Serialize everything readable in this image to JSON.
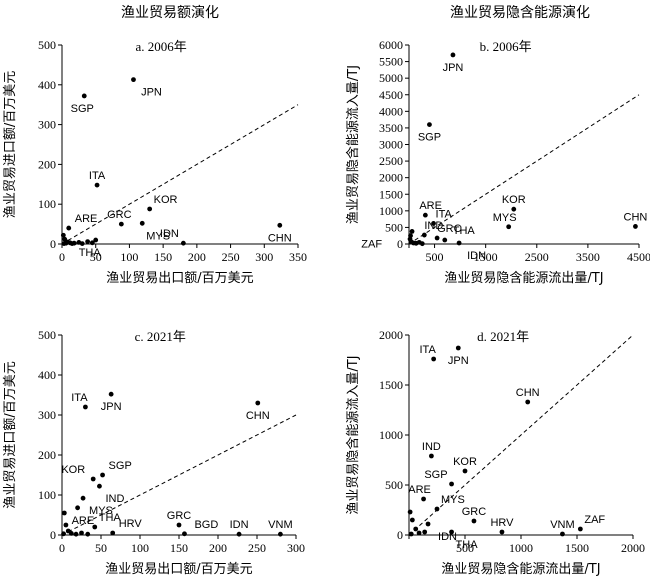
{
  "column_titles": [
    "渔业贸易额演化",
    "渔业贸易隐含能源演化"
  ],
  "chart_data": [
    {
      "type": "scatter",
      "panel": "a. 2006年",
      "xlabel": "渔业贸易出口额/百万美元",
      "ylabel": "渔业贸易进口额/百万美元",
      "xlim": [
        0,
        350
      ],
      "ylim": [
        0,
        500
      ],
      "xticks": [
        0,
        50,
        100,
        150,
        200,
        250,
        300,
        350
      ],
      "yticks": [
        0,
        100,
        200,
        300,
        400,
        500
      ],
      "reference_line": "y = x (dashed)",
      "points": [
        {
          "label": "JPN",
          "x": 106,
          "y": 413
        },
        {
          "label": "SGP",
          "x": 33,
          "y": 372
        },
        {
          "label": "ITA",
          "x": 52,
          "y": 148
        },
        {
          "label": "KOR",
          "x": 130,
          "y": 88
        },
        {
          "label": "GRC",
          "x": 88,
          "y": 50
        },
        {
          "label": "MYS",
          "x": 119,
          "y": 52
        },
        {
          "label": "ARE",
          "x": 10,
          "y": 40
        },
        {
          "label": "THA",
          "x": 50,
          "y": 10
        },
        {
          "label": "IDN",
          "x": 180,
          "y": 2
        },
        {
          "label": "CHN",
          "x": 323,
          "y": 47
        },
        {
          "label": "",
          "x": 2,
          "y": 22
        },
        {
          "label": "",
          "x": 4,
          "y": 12
        },
        {
          "label": "",
          "x": 8,
          "y": 5
        },
        {
          "label": "",
          "x": 12,
          "y": 3
        },
        {
          "label": "",
          "x": 18,
          "y": 2
        },
        {
          "label": "",
          "x": 25,
          "y": 4
        },
        {
          "label": "",
          "x": 30,
          "y": 1
        },
        {
          "label": "",
          "x": 38,
          "y": 6
        },
        {
          "label": "",
          "x": 45,
          "y": 3
        },
        {
          "label": "",
          "x": 3,
          "y": 1
        },
        {
          "label": "",
          "x": 6,
          "y": 2
        },
        {
          "label": "",
          "x": 15,
          "y": 1
        }
      ]
    },
    {
      "type": "scatter",
      "panel": "b. 2006年",
      "xlabel": "渔业贸易隐含能源流出量/TJ",
      "ylabel": "渔业贸易隐含能源流入量/TJ",
      "xlim": [
        0,
        4500
      ],
      "ylim": [
        0,
        6000
      ],
      "xticks": [
        0,
        500,
        1500,
        2500,
        3500,
        4500
      ],
      "xtick_labels": [
        "",
        "500",
        "1500",
        "2500",
        "3500",
        "4500"
      ],
      "yticks": [
        0,
        500,
        1000,
        1500,
        2000,
        2500,
        3000,
        3500,
        4000,
        4500,
        5000,
        5500,
        6000
      ],
      "reference_line": "y = x (dashed)",
      "points": [
        {
          "label": "JPN",
          "x": 860,
          "y": 5700
        },
        {
          "label": "SGP",
          "x": 400,
          "y": 3600
        },
        {
          "label": "ARE",
          "x": 320,
          "y": 870
        },
        {
          "label": "ITA",
          "x": 480,
          "y": 620
        },
        {
          "label": "IND",
          "x": 300,
          "y": 270
        },
        {
          "label": "GRC",
          "x": 550,
          "y": 180
        },
        {
          "label": "THA",
          "x": 700,
          "y": 120
        },
        {
          "label": "IDN",
          "x": 980,
          "y": 30
        },
        {
          "label": "KOR",
          "x": 2050,
          "y": 1050
        },
        {
          "label": "MYS",
          "x": 1950,
          "y": 520
        },
        {
          "label": "CHN",
          "x": 4430,
          "y": 530
        },
        {
          "label": "ZAF",
          "x": 60,
          "y": 380
        },
        {
          "label": "",
          "x": 20,
          "y": 150
        },
        {
          "label": "",
          "x": 50,
          "y": 60
        },
        {
          "label": "",
          "x": 90,
          "y": 30
        },
        {
          "label": "",
          "x": 140,
          "y": 20
        },
        {
          "label": "",
          "x": 200,
          "y": 50
        },
        {
          "label": "",
          "x": 260,
          "y": 10
        },
        {
          "label": "",
          "x": 30,
          "y": 250
        }
      ]
    },
    {
      "type": "scatter",
      "panel": "c. 2021年",
      "xlabel": "渔业贸易出口额/百万美元",
      "ylabel": "渔业贸易进口额/百万美元",
      "xlim": [
        0,
        300
      ],
      "ylim": [
        0,
        500
      ],
      "xticks": [
        0,
        50,
        100,
        150,
        200,
        250,
        300
      ],
      "yticks": [
        0,
        100,
        200,
        300,
        400,
        500
      ],
      "reference_line": "y = x (dashed)",
      "points": [
        {
          "label": "JPN",
          "x": 63,
          "y": 352
        },
        {
          "label": "ITA",
          "x": 30,
          "y": 320
        },
        {
          "label": "CHN",
          "x": 251,
          "y": 330
        },
        {
          "label": "SGP",
          "x": 52,
          "y": 150
        },
        {
          "label": "KOR",
          "x": 40,
          "y": 140
        },
        {
          "label": "IND",
          "x": 48,
          "y": 122
        },
        {
          "label": "MYS",
          "x": 27,
          "y": 92
        },
        {
          "label": "ARE",
          "x": 20,
          "y": 68
        },
        {
          "label": "THA",
          "x": 42,
          "y": 20
        },
        {
          "label": "HRV",
          "x": 65,
          "y": 5
        },
        {
          "label": "GRC",
          "x": 150,
          "y": 25
        },
        {
          "label": "BGD",
          "x": 157,
          "y": 3
        },
        {
          "label": "IDN",
          "x": 227,
          "y": 2
        },
        {
          "label": "VNM",
          "x": 280,
          "y": 2
        },
        {
          "label": "",
          "x": 3,
          "y": 55
        },
        {
          "label": "",
          "x": 5,
          "y": 25
        },
        {
          "label": "",
          "x": 8,
          "y": 10
        },
        {
          "label": "",
          "x": 12,
          "y": 4
        },
        {
          "label": "",
          "x": 18,
          "y": 2
        },
        {
          "label": "",
          "x": 25,
          "y": 5
        },
        {
          "label": "",
          "x": 33,
          "y": 2
        },
        {
          "label": "",
          "x": 2,
          "y": 3
        }
      ]
    },
    {
      "type": "scatter",
      "panel": "d. 2021年",
      "xlabel": "渔业贸易隐含能源流出量/TJ",
      "ylabel": "渔业贸易隐含能源流入量/TJ",
      "xlim": [
        0,
        2000
      ],
      "ylim": [
        0,
        2000
      ],
      "xticks": [
        0,
        500,
        1000,
        1500,
        2000
      ],
      "xtick_labels": [
        "",
        "500",
        "1000",
        "1500",
        "2000"
      ],
      "yticks": [
        0,
        500,
        1000,
        1500,
        2000
      ],
      "reference_line": "y = x (dashed)",
      "points": [
        {
          "label": "JPN",
          "x": 440,
          "y": 1870
        },
        {
          "label": "ITA",
          "x": 220,
          "y": 1760
        },
        {
          "label": "CHN",
          "x": 1060,
          "y": 1330
        },
        {
          "label": "IND",
          "x": 200,
          "y": 790
        },
        {
          "label": "KOR",
          "x": 500,
          "y": 640
        },
        {
          "label": "SGP",
          "x": 380,
          "y": 510
        },
        {
          "label": "ARE",
          "x": 130,
          "y": 360
        },
        {
          "label": "MYS",
          "x": 250,
          "y": 260
        },
        {
          "label": "GRC",
          "x": 580,
          "y": 140
        },
        {
          "label": "IDN",
          "x": 170,
          "y": 110
        },
        {
          "label": "THA",
          "x": 380,
          "y": 30
        },
        {
          "label": "HRV",
          "x": 830,
          "y": 30
        },
        {
          "label": "VNM",
          "x": 1370,
          "y": 10
        },
        {
          "label": "ZAF",
          "x": 1530,
          "y": 60
        },
        {
          "label": "",
          "x": 10,
          "y": 230
        },
        {
          "label": "",
          "x": 30,
          "y": 150
        },
        {
          "label": "",
          "x": 60,
          "y": 60
        },
        {
          "label": "",
          "x": 90,
          "y": 20
        },
        {
          "label": "",
          "x": 140,
          "y": 30
        },
        {
          "label": "",
          "x": 20,
          "y": 10
        }
      ]
    }
  ]
}
